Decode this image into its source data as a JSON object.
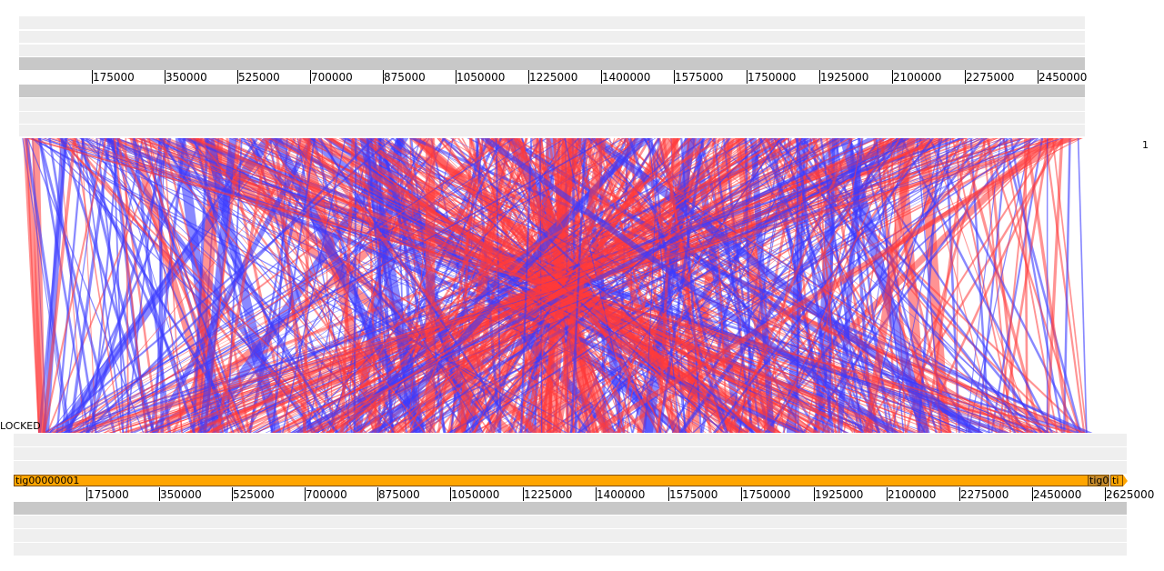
{
  "colors": {
    "forward_link": "#ff3b3b",
    "reverse_link": "#3b3bff",
    "contig_fill": "#ffa500",
    "track_light": "#efefef",
    "track_dark": "#c8c8c8"
  },
  "top_genome": {
    "ticks": [
      "175000",
      "350000",
      "525000",
      "700000",
      "875000",
      "1050000",
      "1225000",
      "1400000",
      "1575000",
      "1750000",
      "1925000",
      "2100000",
      "2275000",
      "2450000"
    ],
    "label": "1"
  },
  "bottom_genome": {
    "ticks": [
      "175000",
      "350000",
      "525000",
      "700000",
      "875000",
      "1050000",
      "1225000",
      "1400000",
      "1575000",
      "1750000",
      "1925000",
      "2100000",
      "2275000",
      "2450000",
      "2625000"
    ],
    "label": "LOCKED",
    "contigs": [
      {
        "name": "tig00000001"
      },
      {
        "name": "tig0"
      },
      {
        "name": "ti"
      }
    ]
  },
  "links": {
    "forward_weight": 0.6,
    "reverse_weight": 0.4
  }
}
